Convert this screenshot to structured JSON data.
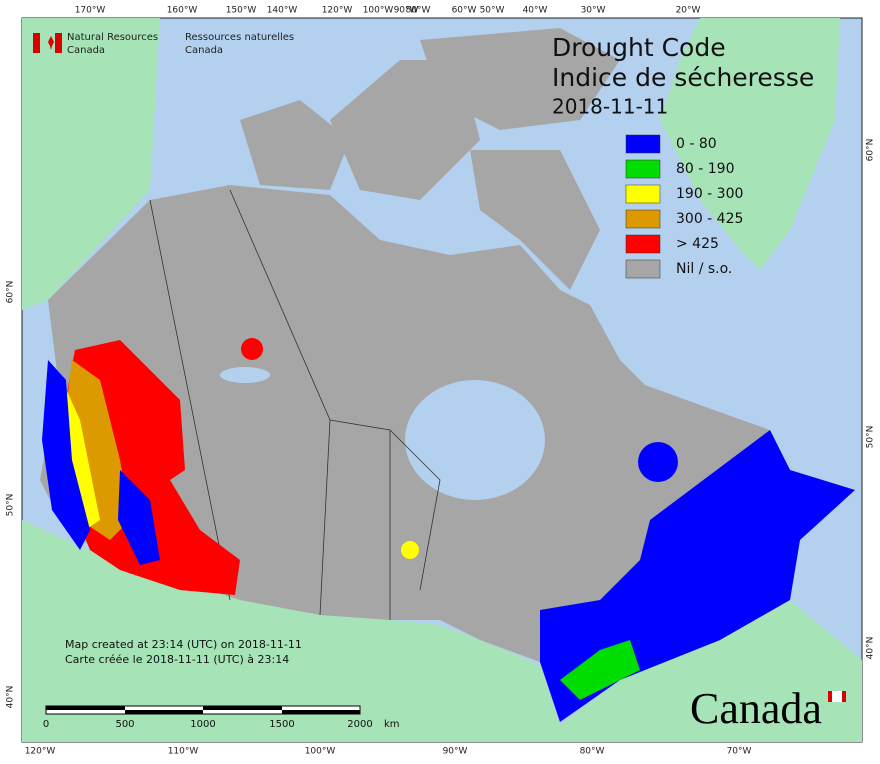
{
  "agency": [
    "Natural Resources",
    "Canada",
    "Ressources naturelles",
    "Canada"
  ],
  "title": [
    "Drought Code",
    "Indice de sécheresse"
  ],
  "date": "2018-11-11",
  "legend": [
    {
      "label": "0 - 80",
      "color": "#0000ff"
    },
    {
      "label": "80 - 190",
      "color": "#00dd00"
    },
    {
      "label": "190 - 300",
      "color": "#ffff00"
    },
    {
      "label": "300 - 425",
      "color": "#dd9900"
    },
    {
      "label": "> 425",
      "color": "#ff0000"
    },
    {
      "label": "Nil / s.o.",
      "color": "#a6a6a6"
    }
  ],
  "notes": [
    "Map created at 23:14 (UTC) on 2018-11-11",
    "Carte créée le 2018-11-11 (UTC) à 23:14"
  ],
  "scale_bar": {
    "ticks": [
      "0",
      "500",
      "1000",
      "1500",
      "2000"
    ],
    "unit": "km"
  },
  "graticule": {
    "top": [
      "170°W",
      "160°W",
      "150°W",
      "140°W",
      "120°W",
      "100°W",
      "90°W",
      "80°W",
      "60°W",
      "50°W",
      "40°W",
      "30°W",
      "20°W"
    ],
    "bottom": [
      "120°W",
      "110°W",
      "100°W",
      "90°W",
      "80°W",
      "70°W"
    ],
    "left": [
      "60°N",
      "50°N",
      "40°N"
    ],
    "right": [
      "60°N",
      "50°N",
      "40°N"
    ]
  },
  "wordmark": "Canada"
}
